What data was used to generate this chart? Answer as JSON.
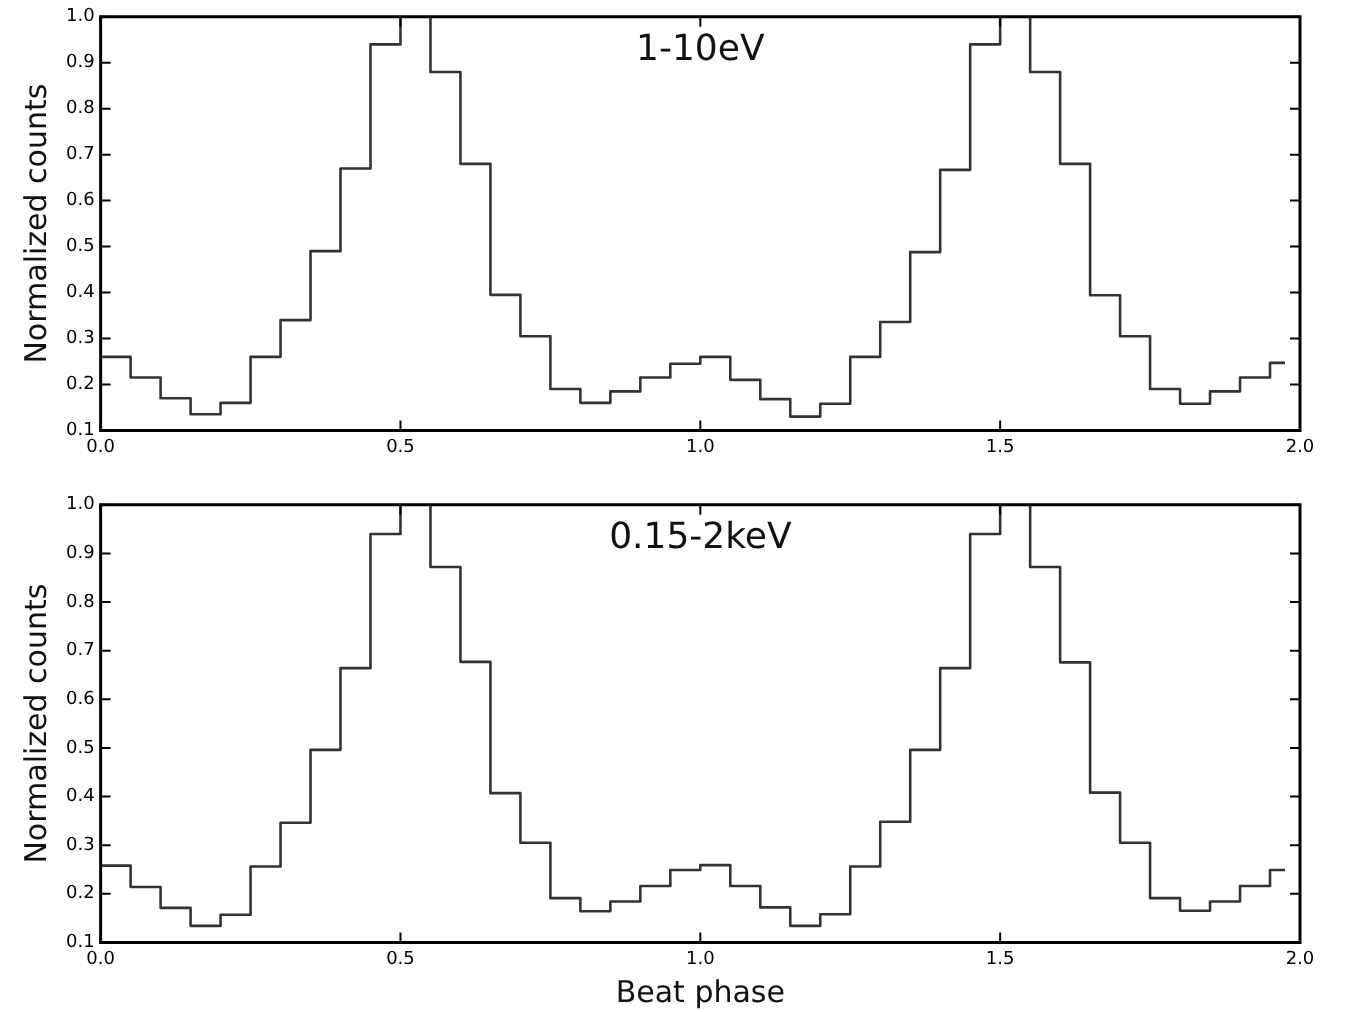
{
  "chart_data": [
    {
      "type": "step",
      "ylabel": "Normalized counts",
      "annotations": [
        "1-10eV"
      ],
      "xlim": [
        0,
        2
      ],
      "ylim": [
        0.1,
        1.0
      ],
      "xticks": [
        {
          "value": 0,
          "label": "0.0"
        },
        {
          "value": 0.5,
          "label": "0.5"
        },
        {
          "value": 1,
          "label": "1.0"
        },
        {
          "value": 1.5,
          "label": "1.5"
        },
        {
          "value": 2,
          "label": "2.0"
        }
      ],
      "yticks": [
        0.1,
        0.2,
        0.3,
        0.4,
        0.5,
        0.6,
        0.7,
        0.8,
        0.9,
        {
          "value": 1,
          "label": "1.0"
        }
      ],
      "grid": false,
      "x": [
        0,
        0.05,
        0.1,
        0.15,
        0.2,
        0.25,
        0.3,
        0.35,
        0.4,
        0.45,
        0.5,
        0.55,
        0.6,
        0.65,
        0.7,
        0.75,
        0.8,
        0.85,
        0.9,
        0.95,
        1.0,
        1.05,
        1.1,
        1.15,
        1.2,
        1.25,
        1.3,
        1.35,
        1.4,
        1.45,
        1.5,
        1.55,
        1.6,
        1.65,
        1.7,
        1.75,
        1.8,
        1.85,
        1.9,
        1.95,
        1.975
      ],
      "series": [
        {
          "color": "#333333",
          "values": [
            0.26,
            0.215,
            0.17,
            0.135,
            0.16,
            0.26,
            0.34,
            0.49,
            0.67,
            0.94,
            1.0,
            0.88,
            0.68,
            0.395,
            0.305,
            0.19,
            0.16,
            0.185,
            0.215,
            0.245,
            0.26,
            0.21,
            0.168,
            0.13,
            0.158,
            0.26,
            0.336,
            0.488,
            0.667,
            0.94,
            1.0,
            0.88,
            0.68,
            0.394,
            0.305,
            0.19,
            0.158,
            0.185,
            0.215,
            0.247,
            0.247
          ]
        }
      ]
    },
    {
      "type": "step",
      "xlabel": "Beat phase",
      "ylabel": "Normalized counts",
      "annotations": [
        "0.15-2keV"
      ],
      "xlim": [
        0,
        2
      ],
      "ylim": [
        0.1,
        1.0
      ],
      "xticks": [
        {
          "value": 0,
          "label": "0.0"
        },
        {
          "value": 0.5,
          "label": "0.5"
        },
        {
          "value": 1,
          "label": "1.0"
        },
        {
          "value": 1.5,
          "label": "1.5"
        },
        {
          "value": 2,
          "label": "2.0"
        }
      ],
      "yticks": [
        0.1,
        0.2,
        0.3,
        0.4,
        0.5,
        0.6,
        0.7,
        0.8,
        0.9,
        {
          "value": 1,
          "label": "1.0"
        }
      ],
      "grid": false,
      "x": [
        0,
        0.05,
        0.1,
        0.15,
        0.2,
        0.25,
        0.3,
        0.35,
        0.4,
        0.45,
        0.5,
        0.55,
        0.6,
        0.65,
        0.7,
        0.75,
        0.8,
        0.85,
        0.9,
        0.95,
        1.0,
        1.05,
        1.1,
        1.15,
        1.2,
        1.25,
        1.3,
        1.35,
        1.4,
        1.45,
        1.5,
        1.55,
        1.6,
        1.65,
        1.7,
        1.75,
        1.8,
        1.85,
        1.9,
        1.95,
        1.975
      ],
      "series": [
        {
          "color": "#333333",
          "values": [
            0.258,
            0.214,
            0.171,
            0.134,
            0.157,
            0.256,
            0.346,
            0.496,
            0.664,
            0.94,
            1.0,
            0.872,
            0.677,
            0.407,
            0.305,
            0.191,
            0.164,
            0.184,
            0.216,
            0.249,
            0.259,
            0.216,
            0.172,
            0.134,
            0.158,
            0.256,
            0.348,
            0.496,
            0.664,
            0.94,
            1.0,
            0.872,
            0.676,
            0.408,
            0.305,
            0.191,
            0.165,
            0.184,
            0.216,
            0.249,
            0.249
          ]
        }
      ]
    }
  ]
}
